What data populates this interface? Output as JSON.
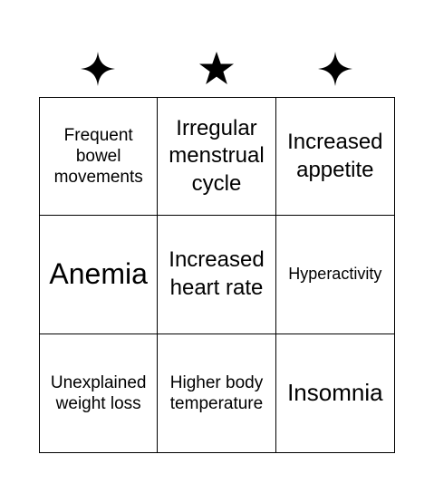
{
  "header": {
    "symbols": [
      {
        "icon": "four-point-star-icon"
      },
      {
        "icon": "five-point-star-icon"
      },
      {
        "icon": "four-point-star-icon"
      }
    ]
  },
  "board": {
    "cells": [
      {
        "text": "Frequent bowel movements"
      },
      {
        "text": "Irregular menstrual cycle"
      },
      {
        "text": "Increased appetite"
      },
      {
        "text": "Anemia"
      },
      {
        "text": "Increased heart rate"
      },
      {
        "text": "Hyperactivity"
      },
      {
        "text": "Unexplained weight loss"
      },
      {
        "text": "Higher body temperature"
      },
      {
        "text": "Insomnia"
      }
    ]
  }
}
